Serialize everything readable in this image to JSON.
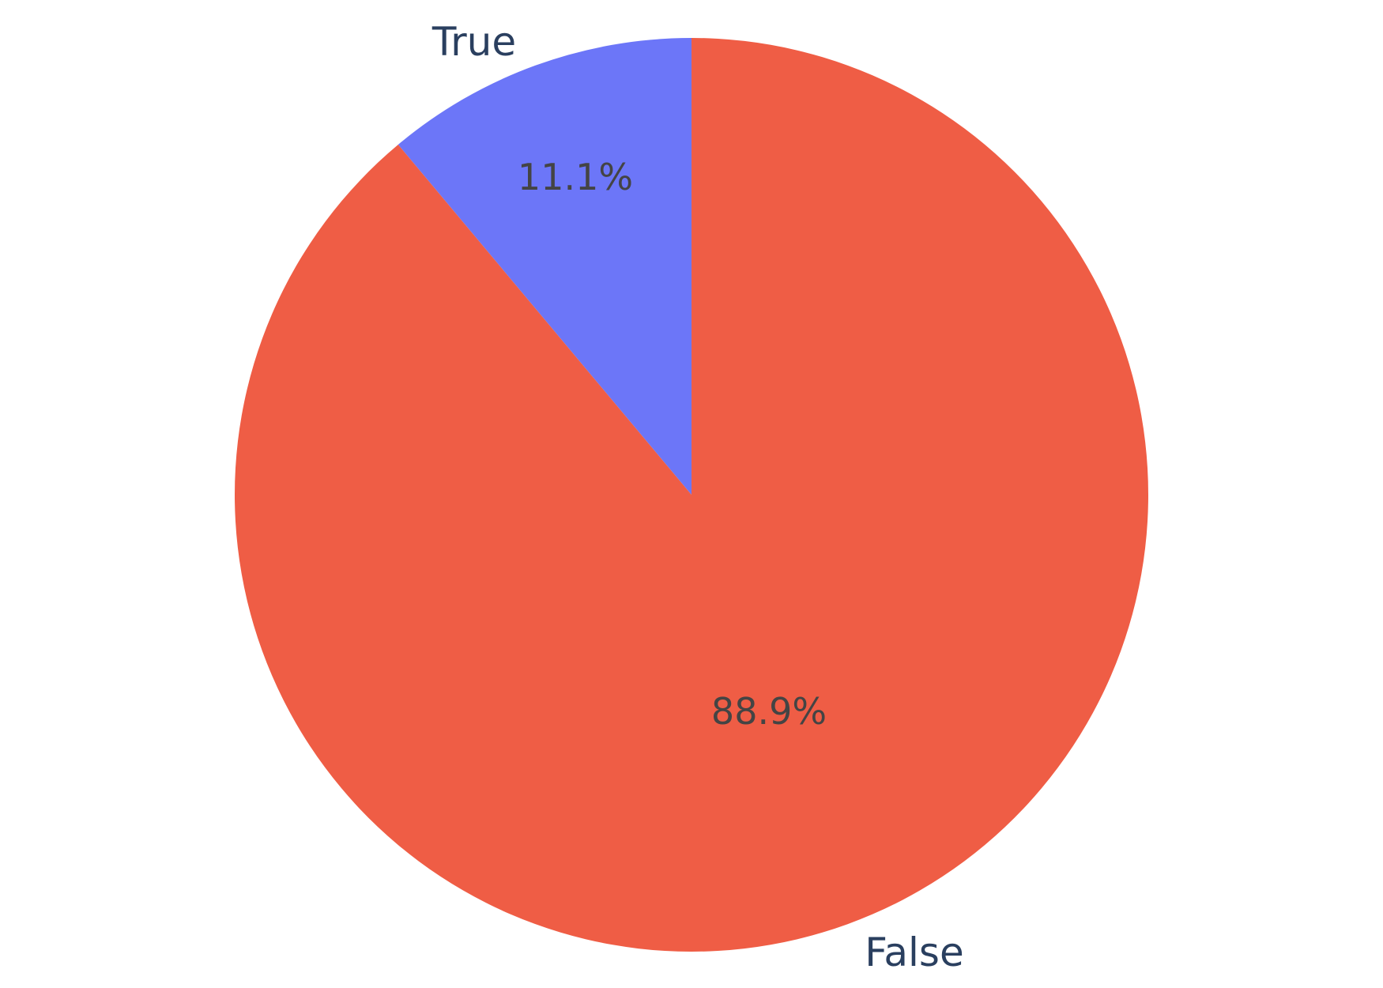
{
  "chart_data": {
    "type": "pie",
    "labels": [
      "False",
      "True"
    ],
    "values": [
      88.9,
      11.1
    ],
    "percent_labels": [
      "88.9%",
      "11.1%"
    ],
    "colors": [
      "#EF5D45",
      "#6C76F8"
    ],
    "start_angle_deg": 0,
    "direction": "counterclockwise",
    "legend": "none"
  }
}
